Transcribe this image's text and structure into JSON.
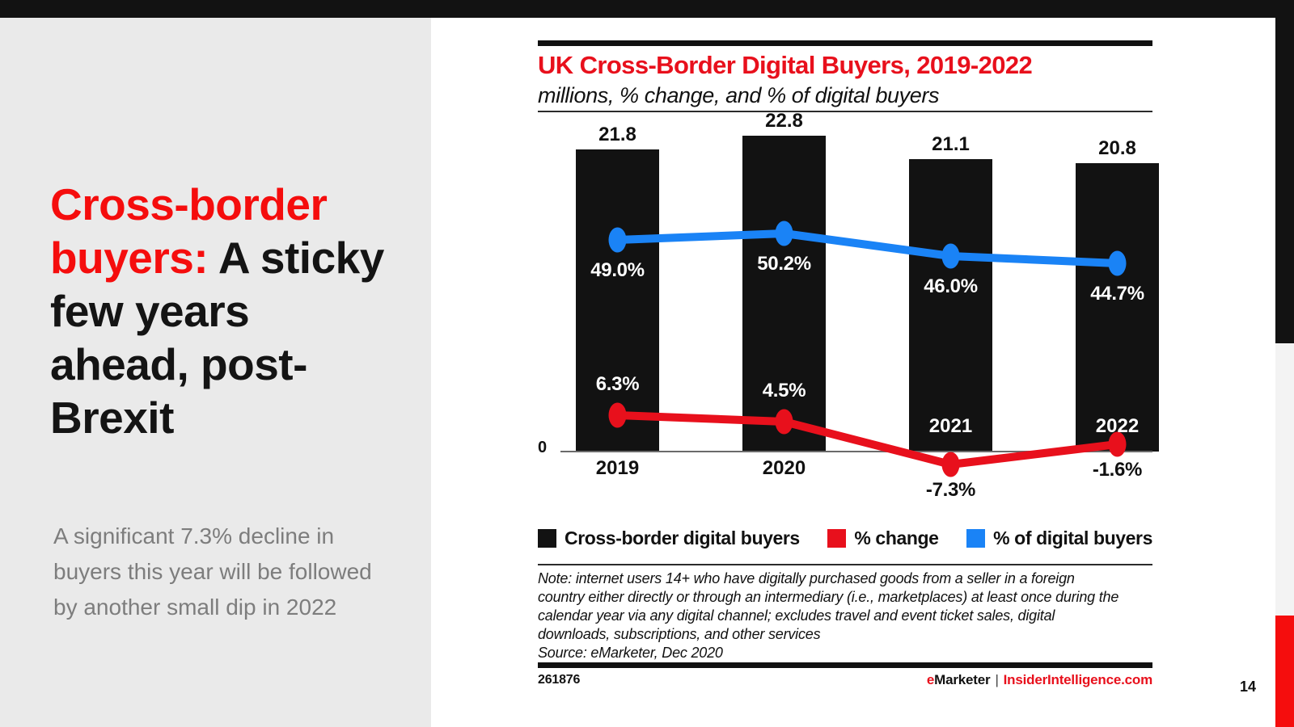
{
  "colors": {
    "black": "#121212",
    "accent_red": "#f50d0d",
    "chart_red": "#e8101c",
    "blue": "#1a83f6",
    "panel_gray": "#eaeaea",
    "strip_gray": "#f3f3f3",
    "text_gray": "#7d7d7d"
  },
  "slide": {
    "title": {
      "red_part": "Cross-border buyers:",
      "black_part": " A sticky few years ahead, post-Brexit"
    },
    "body_text": "A significant 7.3% decline in buyers this year will be followed by another small dip in 2022",
    "page_number": "14"
  },
  "chart": {
    "title": "UK Cross-Border Digital Buyers, 2019-2022",
    "subtitle": "millions, % change, and % of digital buyers",
    "axis_zero_label": "0",
    "note_lines": [
      "Note: internet users 14+ who have digitally purchased goods from a seller in a foreign",
      "country either directly or through an intermediary (i.e., marketplaces) at least once during the",
      "calendar year via any digital channel; excludes travel and event ticket sales, digital",
      "downloads, subscriptions, and other services"
    ],
    "source_line": "Source: eMarketer, Dec 2020",
    "chart_id": "261876",
    "footer_brand": {
      "prefix_e": "e",
      "name_rest": "Marketer",
      "divider": "|",
      "site": "InsiderIntelligence.com"
    }
  },
  "chart_data": {
    "type": "combo-bar-line",
    "title": "UK Cross-Border Digital Buyers, 2019-2022",
    "subtitle": "millions, % change, and % of digital buyers",
    "categories": [
      "2019",
      "2020",
      "2021",
      "2022"
    ],
    "series": [
      {
        "name": "Cross-border digital buyers",
        "type": "bar",
        "unit": "millions",
        "color": "#121212",
        "values": [
          21.8,
          22.8,
          21.1,
          20.8
        ],
        "point_labels": [
          "21.8",
          "22.8",
          "21.1",
          "20.8"
        ]
      },
      {
        "name": "% change",
        "type": "line",
        "unit": "percent",
        "color": "#e8101c",
        "values": [
          6.3,
          4.5,
          -7.3,
          -1.6
        ],
        "point_labels": [
          "6.3%",
          "4.5%",
          "-7.3%",
          "-1.6%"
        ]
      },
      {
        "name": "% of digital buyers",
        "type": "line",
        "unit": "percent",
        "color": "#1a83f6",
        "values": [
          49.0,
          50.2,
          46.0,
          44.7
        ],
        "point_labels": [
          "49.0%",
          "50.2%",
          "46.0%",
          "44.7%"
        ]
      }
    ],
    "bar_axis": {
      "min": 0,
      "baseline_label": "0"
    },
    "grid": false,
    "legend_position": "bottom"
  }
}
